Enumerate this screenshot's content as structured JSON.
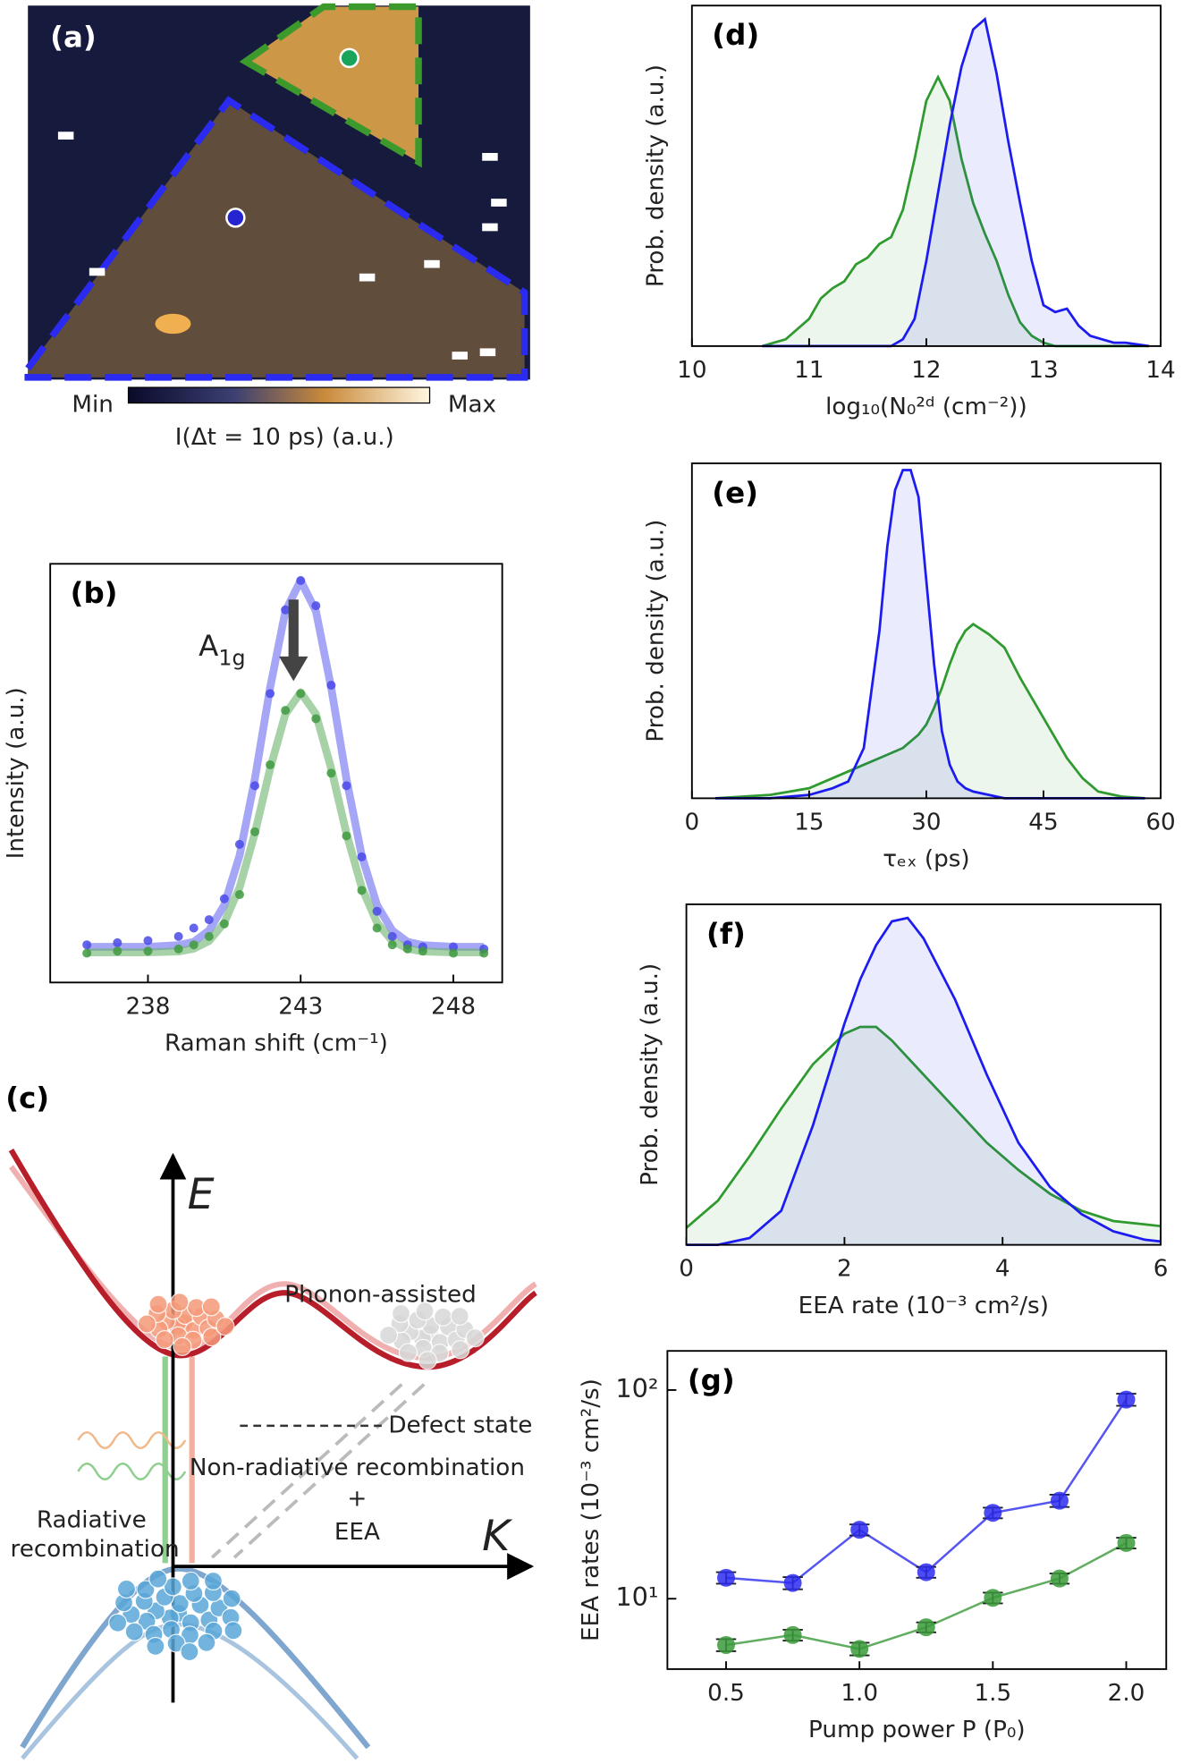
{
  "chart_data": [
    {
      "type": "image",
      "panel": "(a)",
      "colorbar_labels": [
        "Min",
        "Max"
      ],
      "xlabel": "I(Δt = 10 ps) (a.u.)"
    },
    {
      "type": "scatter_fit",
      "panel": "(b)",
      "annotation": "A",
      "annotation_sub": "1g",
      "xlabel": "Raman shift (cm⁻¹)",
      "ylabel": "Intensity (a.u.)",
      "xlim": [
        234.8,
        249.6
      ],
      "ylim": [
        0,
        1
      ],
      "xticks": [
        238,
        243,
        248
      ],
      "x": [
        236,
        237,
        238,
        239,
        239.5,
        240,
        240.5,
        241,
        241.5,
        242,
        242.5,
        243,
        243.5,
        244,
        244.5,
        245,
        245.5,
        246,
        246.5,
        247,
        248,
        249
      ],
      "series": [
        {
          "style": "line",
          "color": "#6b6bf0",
          "values": [
            0.085,
            0.085,
            0.085,
            0.089,
            0.097,
            0.124,
            0.185,
            0.303,
            0.486,
            0.704,
            0.887,
            0.96,
            0.887,
            0.704,
            0.486,
            0.303,
            0.185,
            0.124,
            0.097,
            0.089,
            0.085,
            0.085
          ]
        },
        {
          "style": "line",
          "color": "#6db36d",
          "values": [
            0.072,
            0.072,
            0.072,
            0.074,
            0.081,
            0.099,
            0.143,
            0.227,
            0.356,
            0.511,
            0.641,
            0.693,
            0.641,
            0.511,
            0.356,
            0.227,
            0.143,
            0.099,
            0.081,
            0.074,
            0.072,
            0.072
          ]
        },
        {
          "style": "points",
          "color": "#4a4ae8",
          "values": [
            0.09,
            0.095,
            0.1,
            0.11,
            0.13,
            0.15,
            0.2,
            0.33,
            0.47,
            0.69,
            0.89,
            0.96,
            0.9,
            0.71,
            0.47,
            0.3,
            0.17,
            0.11,
            0.09,
            0.085,
            0.085,
            0.08
          ]
        },
        {
          "style": "points",
          "color": "#3f9a3f",
          "values": [
            0.07,
            0.075,
            0.075,
            0.08,
            0.09,
            0.11,
            0.14,
            0.21,
            0.36,
            0.52,
            0.65,
            0.69,
            0.63,
            0.5,
            0.35,
            0.22,
            0.13,
            0.09,
            0.08,
            0.075,
            0.07,
            0.07
          ]
        }
      ]
    },
    {
      "type": "kde",
      "panel": "(d)",
      "xlabel": "log₁₀(N₀²ᵈ (cm⁻²))",
      "ylabel": "Prob. density (a.u.)",
      "xlim": [
        10,
        14
      ],
      "ylim": [
        0,
        1
      ],
      "xticks": [
        10,
        11,
        12,
        13,
        14
      ],
      "x": [
        10.6,
        10.7,
        10.8,
        10.9,
        11.0,
        11.1,
        11.2,
        11.3,
        11.4,
        11.5,
        11.6,
        11.7,
        11.8,
        11.9,
        12.0,
        12.1,
        12.2,
        12.3,
        12.4,
        12.5,
        12.6,
        12.7,
        12.8,
        12.9,
        13.0,
        13.1,
        13.2,
        13.3,
        13.4,
        13.5,
        13.6,
        13.7,
        13.8,
        13.9
      ],
      "series": [
        {
          "color": "#2f9a2f",
          "values": [
            0,
            0.01,
            0.02,
            0.05,
            0.08,
            0.14,
            0.17,
            0.19,
            0.24,
            0.26,
            0.3,
            0.32,
            0.4,
            0.55,
            0.72,
            0.79,
            0.72,
            0.55,
            0.42,
            0.33,
            0.25,
            0.15,
            0.07,
            0.03,
            0.01,
            0,
            0,
            0,
            0,
            0,
            0,
            0,
            0,
            0
          ]
        },
        {
          "color": "#1c1cf0",
          "values": [
            0,
            0,
            0,
            0,
            0,
            0,
            0,
            0,
            0,
            0,
            0,
            0,
            0.02,
            0.08,
            0.25,
            0.45,
            0.65,
            0.82,
            0.93,
            0.96,
            0.8,
            0.6,
            0.42,
            0.25,
            0.12,
            0.1,
            0.11,
            0.06,
            0.03,
            0.02,
            0.01,
            0.01,
            0.005,
            0
          ]
        }
      ]
    },
    {
      "type": "kde",
      "panel": "(e)",
      "xlabel": "τₑₓ (ps)",
      "ylabel": "Prob. density (a.u.)",
      "xlim": [
        0,
        60
      ],
      "ylim": [
        0,
        1
      ],
      "xticks": [
        0,
        15,
        30,
        45,
        60
      ],
      "x": [
        3,
        10,
        15,
        18,
        20,
        22,
        24,
        25,
        26,
        27,
        28,
        29,
        30,
        31,
        32,
        33,
        34,
        35,
        36,
        38,
        40,
        42,
        44,
        46,
        48,
        50,
        52,
        55,
        58
      ],
      "series": [
        {
          "color": "#2f9a2f",
          "values": [
            0,
            0.01,
            0.03,
            0.06,
            0.08,
            0.1,
            0.12,
            0.13,
            0.14,
            0.15,
            0.17,
            0.19,
            0.22,
            0.27,
            0.33,
            0.4,
            0.46,
            0.5,
            0.52,
            0.49,
            0.45,
            0.36,
            0.28,
            0.2,
            0.12,
            0.06,
            0.02,
            0.005,
            0
          ]
        },
        {
          "color": "#1c1cf0",
          "values": [
            0,
            0,
            0.01,
            0.03,
            0.05,
            0.15,
            0.5,
            0.75,
            0.92,
            0.98,
            0.98,
            0.9,
            0.65,
            0.4,
            0.2,
            0.1,
            0.05,
            0.03,
            0.02,
            0.01,
            0,
            0,
            0,
            0,
            0,
            0,
            0,
            0,
            0
          ]
        }
      ]
    },
    {
      "type": "kde",
      "panel": "(f)",
      "xlabel": "EEA rate (10⁻³ cm²/s)",
      "ylabel": "Prob. density (a.u.)",
      "xlim": [
        0,
        6
      ],
      "ylim": [
        0,
        1
      ],
      "xticks": [
        0,
        2,
        4,
        6
      ],
      "x": [
        0,
        0.4,
        0.8,
        1.2,
        1.6,
        2.0,
        2.2,
        2.4,
        2.6,
        2.8,
        3.0,
        3.4,
        3.8,
        4.2,
        4.6,
        5.0,
        5.4,
        5.8,
        6.0
      ],
      "series": [
        {
          "color": "#2f9a2f",
          "values": [
            0.05,
            0.13,
            0.26,
            0.4,
            0.53,
            0.62,
            0.64,
            0.64,
            0.6,
            0.55,
            0.5,
            0.4,
            0.3,
            0.22,
            0.15,
            0.1,
            0.07,
            0.06,
            0.055
          ]
        },
        {
          "color": "#1c1cf0",
          "values": [
            0,
            0,
            0.02,
            0.1,
            0.35,
            0.65,
            0.78,
            0.88,
            0.95,
            0.96,
            0.9,
            0.72,
            0.5,
            0.3,
            0.17,
            0.09,
            0.04,
            0.015,
            0.01
          ]
        }
      ]
    },
    {
      "type": "line",
      "panel": "(g)",
      "xlabel": "Pump power P (P₀)",
      "ylabel": "EEA rates (10⁻³ cm²/s)",
      "log_y": true,
      "xlim": [
        0.28,
        2.15
      ],
      "ylim": [
        4.6,
        154
      ],
      "xticks": [
        0.5,
        {
          "value": 1,
          "label": "1.0"
        },
        1.5,
        {
          "value": 2,
          "label": "2.0"
        }
      ],
      "yticks": [
        {
          "value": 10,
          "label": "10¹"
        },
        {
          "value": 100,
          "label": "10²"
        }
      ],
      "x": [
        0.5,
        0.75,
        1.0,
        1.25,
        1.5,
        1.75,
        2.0
      ],
      "series": [
        {
          "color": "#2b2bee",
          "values": [
            12.6,
            11.9,
            21.4,
            13.4,
            25.8,
            29.5,
            90
          ],
          "errors": [
            0.8,
            0.8,
            1.3,
            0.8,
            1.5,
            2,
            6
          ]
        },
        {
          "color": "#3a9a3a",
          "values": [
            6.0,
            6.7,
            5.75,
            7.3,
            10.1,
            12.5,
            18.5
          ],
          "errors": [
            0.4,
            0.4,
            0.4,
            0.4,
            0.6,
            0.7,
            1.1
          ]
        }
      ]
    }
  ],
  "diagram": {
    "panel": "(c)",
    "energy_axis": "E",
    "momentum_axis": "K",
    "phonon": "Phonon-assisted",
    "defect": "Defect state",
    "nonradiative": "Non-radiative recombination",
    "plus": "+",
    "eea": "EEA",
    "radiative": [
      "Radiative",
      "recombination"
    ]
  }
}
